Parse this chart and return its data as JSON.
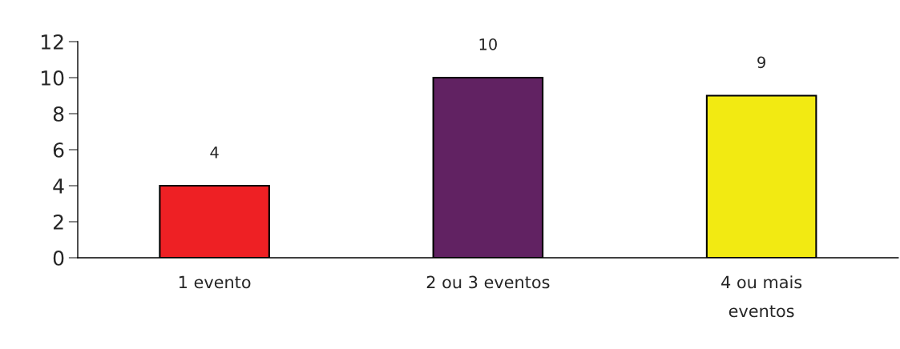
{
  "chart_data": {
    "type": "bar",
    "categories": [
      "1 evento",
      "2 ou 3 eventos",
      "4 ou mais\neventos"
    ],
    "values": [
      4,
      10,
      9
    ],
    "colors": [
      "#ee2024",
      "#612262",
      "#f2ea12"
    ],
    "ylim": [
      0,
      12
    ],
    "yticks": [
      0,
      2,
      4,
      6,
      8,
      10,
      12
    ],
    "data_labels": true,
    "grid": false,
    "legend": false
  }
}
